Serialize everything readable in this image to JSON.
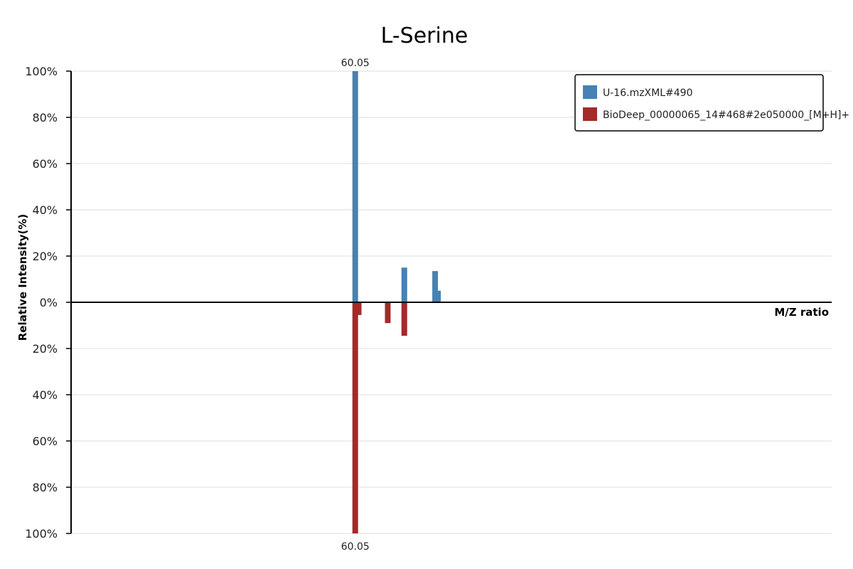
{
  "chart_data": {
    "type": "bar",
    "title": "L-Serine",
    "xlabel": "M/Z ratio",
    "ylabel": "Relative Intensity(%)",
    "ylim": [
      -100,
      100
    ],
    "yticks": [
      {
        "value": 100,
        "label": "100%"
      },
      {
        "value": 80,
        "label": "80%"
      },
      {
        "value": 60,
        "label": "60%"
      },
      {
        "value": 40,
        "label": "40%"
      },
      {
        "value": 20,
        "label": "20%"
      },
      {
        "value": 0,
        "label": "0%"
      },
      {
        "value": -20,
        "label": "20%"
      },
      {
        "value": -40,
        "label": "40%"
      },
      {
        "value": -60,
        "label": "60%"
      },
      {
        "value": -80,
        "label": "80%"
      },
      {
        "value": -100,
        "label": "100%"
      }
    ],
    "grid": true,
    "legend_position": "top-right",
    "series": [
      {
        "name": "U-16.mzXML#490",
        "color": "#4682B4",
        "peaks": [
          {
            "mz": 60.05,
            "intensity": 100,
            "label": "60.05"
          },
          {
            "mz": 60.91,
            "intensity": 15
          },
          {
            "mz": 61.45,
            "intensity": 13.5
          },
          {
            "mz": 61.5,
            "intensity": 5
          }
        ]
      },
      {
        "name": "BioDeep_00000065_14#468#2e050000_[M+H]+",
        "color": "#A52A2A",
        "peaks": [
          {
            "mz": 60.05,
            "intensity": -100,
            "label": "60.05"
          },
          {
            "mz": 60.11,
            "intensity": -5.5
          },
          {
            "mz": 60.62,
            "intensity": -9
          },
          {
            "mz": 60.91,
            "intensity": -14.5
          }
        ]
      }
    ]
  }
}
